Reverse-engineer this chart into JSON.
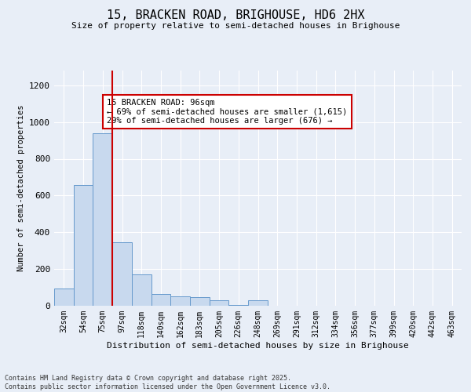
{
  "title_line1": "15, BRACKEN ROAD, BRIGHOUSE, HD6 2HX",
  "title_line2": "Size of property relative to semi-detached houses in Brighouse",
  "xlabel": "Distribution of semi-detached houses by size in Brighouse",
  "ylabel": "Number of semi-detached properties",
  "categories": [
    "32sqm",
    "54sqm",
    "75sqm",
    "97sqm",
    "118sqm",
    "140sqm",
    "162sqm",
    "183sqm",
    "205sqm",
    "226sqm",
    "248sqm",
    "269sqm",
    "291sqm",
    "312sqm",
    "334sqm",
    "356sqm",
    "377sqm",
    "399sqm",
    "420sqm",
    "442sqm",
    "463sqm"
  ],
  "values": [
    95,
    655,
    940,
    345,
    170,
    65,
    50,
    45,
    30,
    5,
    30,
    0,
    0,
    0,
    0,
    0,
    0,
    0,
    0,
    0,
    0
  ],
  "bar_color": "#c8d9ee",
  "bar_edge_color": "#6699cc",
  "vline_color": "#cc0000",
  "vline_x": 2.5,
  "annotation_text": "15 BRACKEN ROAD: 96sqm\n← 69% of semi-detached houses are smaller (1,615)\n29% of semi-detached houses are larger (676) →",
  "annotation_box_edgecolor": "#cc0000",
  "ylim": [
    0,
    1280
  ],
  "yticks": [
    0,
    200,
    400,
    600,
    800,
    1000,
    1200
  ],
  "footer_text": "Contains HM Land Registry data © Crown copyright and database right 2025.\nContains public sector information licensed under the Open Government Licence v3.0.",
  "background_color": "#e8eef7",
  "plot_bg_color": "#e8eef7",
  "grid_color": "#ffffff"
}
